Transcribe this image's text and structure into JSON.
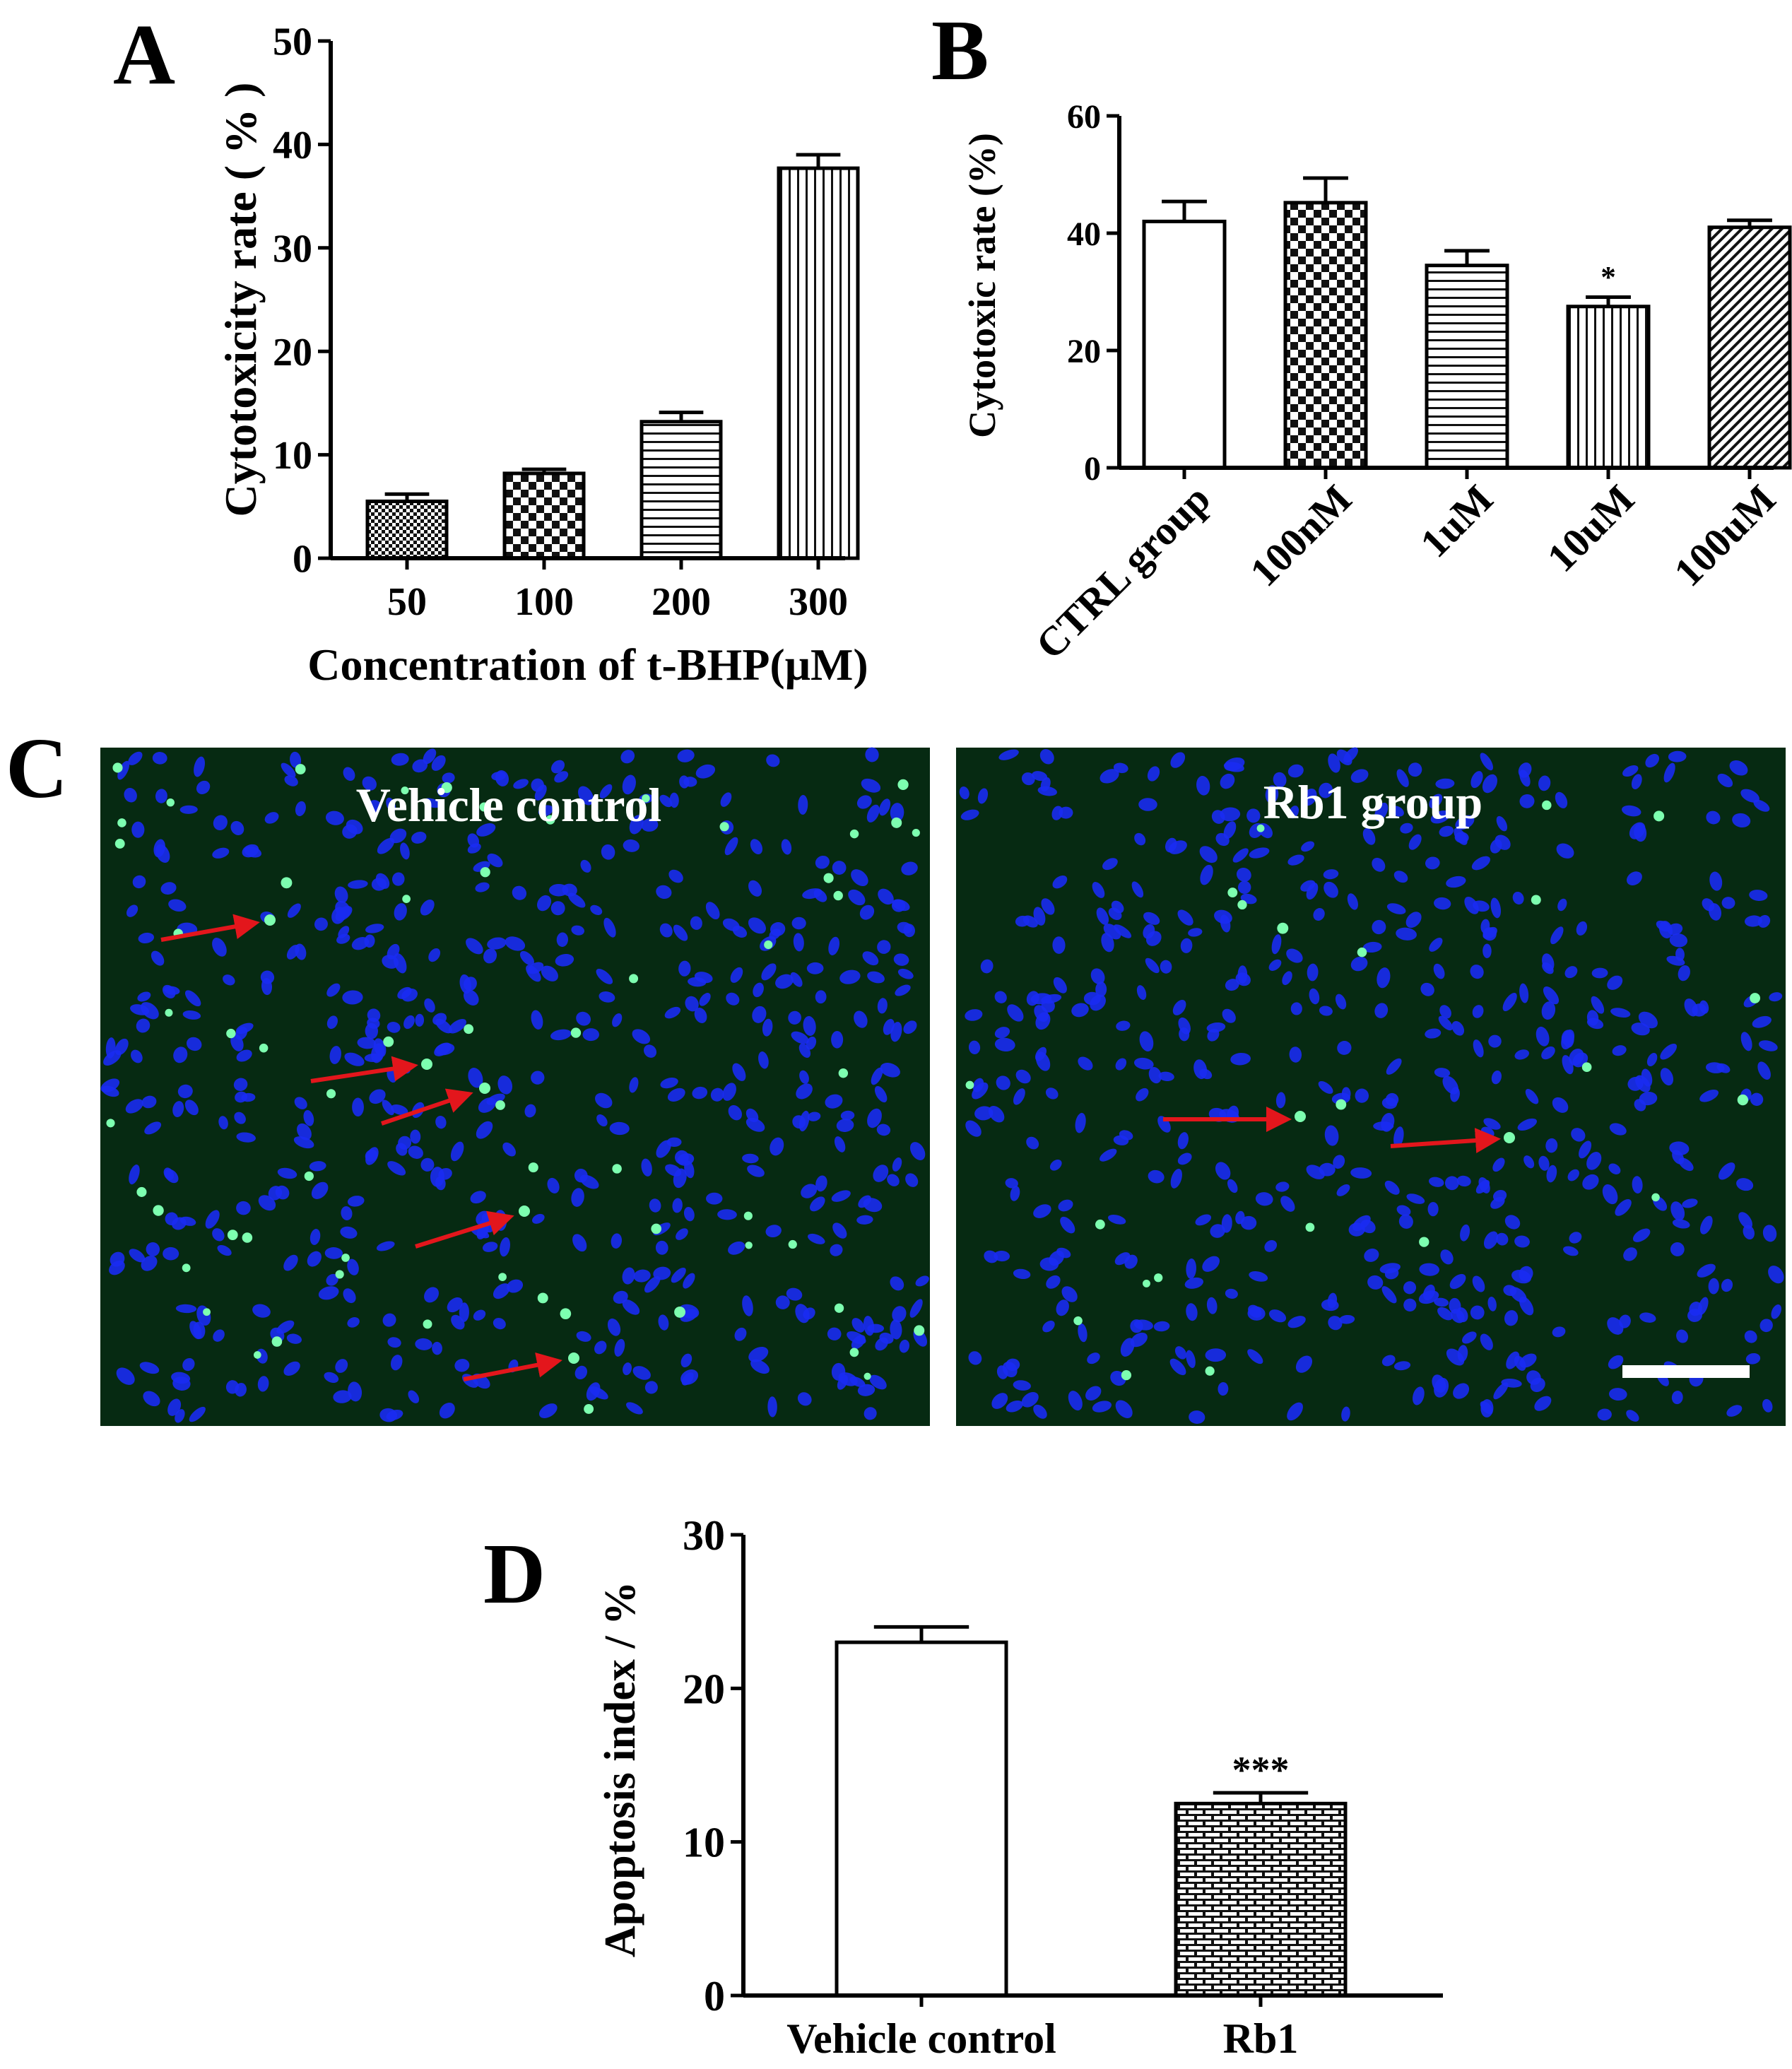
{
  "panels": {
    "A": {
      "letter": "A"
    },
    "B": {
      "letter": "B"
    },
    "C": {
      "letter": "C",
      "left_title": "Vehicle control",
      "right_title": "Rb1 group"
    },
    "D": {
      "letter": "D"
    }
  },
  "colors": {
    "bar_edge": "#000000",
    "micrograph_bg": "#062a12",
    "nuclei": "#1a2bf2",
    "apoptotic": "#7dffb0",
    "arrow": "#e3161c",
    "scale_bar": "#ffffff"
  },
  "chart_data": [
    {
      "panel": "A",
      "type": "bar",
      "title": "",
      "xlabel": "Concentration of t-BHP(μM)",
      "ylabel": "Cytotoxicity  rate ( % )",
      "categories": [
        "50",
        "100",
        "200",
        "300"
      ],
      "values": [
        5.5,
        8.2,
        13.2,
        37.7
      ],
      "errors": [
        0.7,
        0.4,
        0.9,
        1.3
      ],
      "patterns": [
        "dense-check",
        "checker",
        "horizontal",
        "vertical"
      ],
      "ylim": [
        0,
        50
      ],
      "yticks": [
        "0",
        "10",
        "20",
        "30",
        "40",
        "50"
      ],
      "grid": false
    },
    {
      "panel": "B",
      "type": "bar",
      "title": "",
      "xlabel": "",
      "ylabel": "Cytotoxic rate (%)",
      "categories": [
        "CTRL group",
        "100nM",
        "1uM",
        "10uM",
        "100uM"
      ],
      "values": [
        42.0,
        45.2,
        34.5,
        27.5,
        41.0
      ],
      "errors": [
        3.4,
        4.2,
        2.5,
        1.6,
        1.2
      ],
      "annotations": [
        "",
        "",
        "",
        "*",
        ""
      ],
      "patterns": [
        "open",
        "checker",
        "horizontal",
        "vertical",
        "diagonal"
      ],
      "ylim": [
        0,
        60
      ],
      "yticks": [
        "0",
        "20",
        "40",
        "60"
      ],
      "grid": false
    },
    {
      "panel": "D",
      "type": "bar",
      "title": "",
      "xlabel": "",
      "ylabel": "Apoptosis index / %",
      "categories": [
        "Vehicle control",
        "Rb1"
      ],
      "values": [
        23.0,
        12.5
      ],
      "errors": [
        1.0,
        0.7
      ],
      "annotations": [
        "",
        "***"
      ],
      "patterns": [
        "open",
        "brick"
      ],
      "ylim": [
        0,
        30
      ],
      "yticks": [
        "0",
        "10",
        "20",
        "30"
      ],
      "grid": false
    }
  ]
}
